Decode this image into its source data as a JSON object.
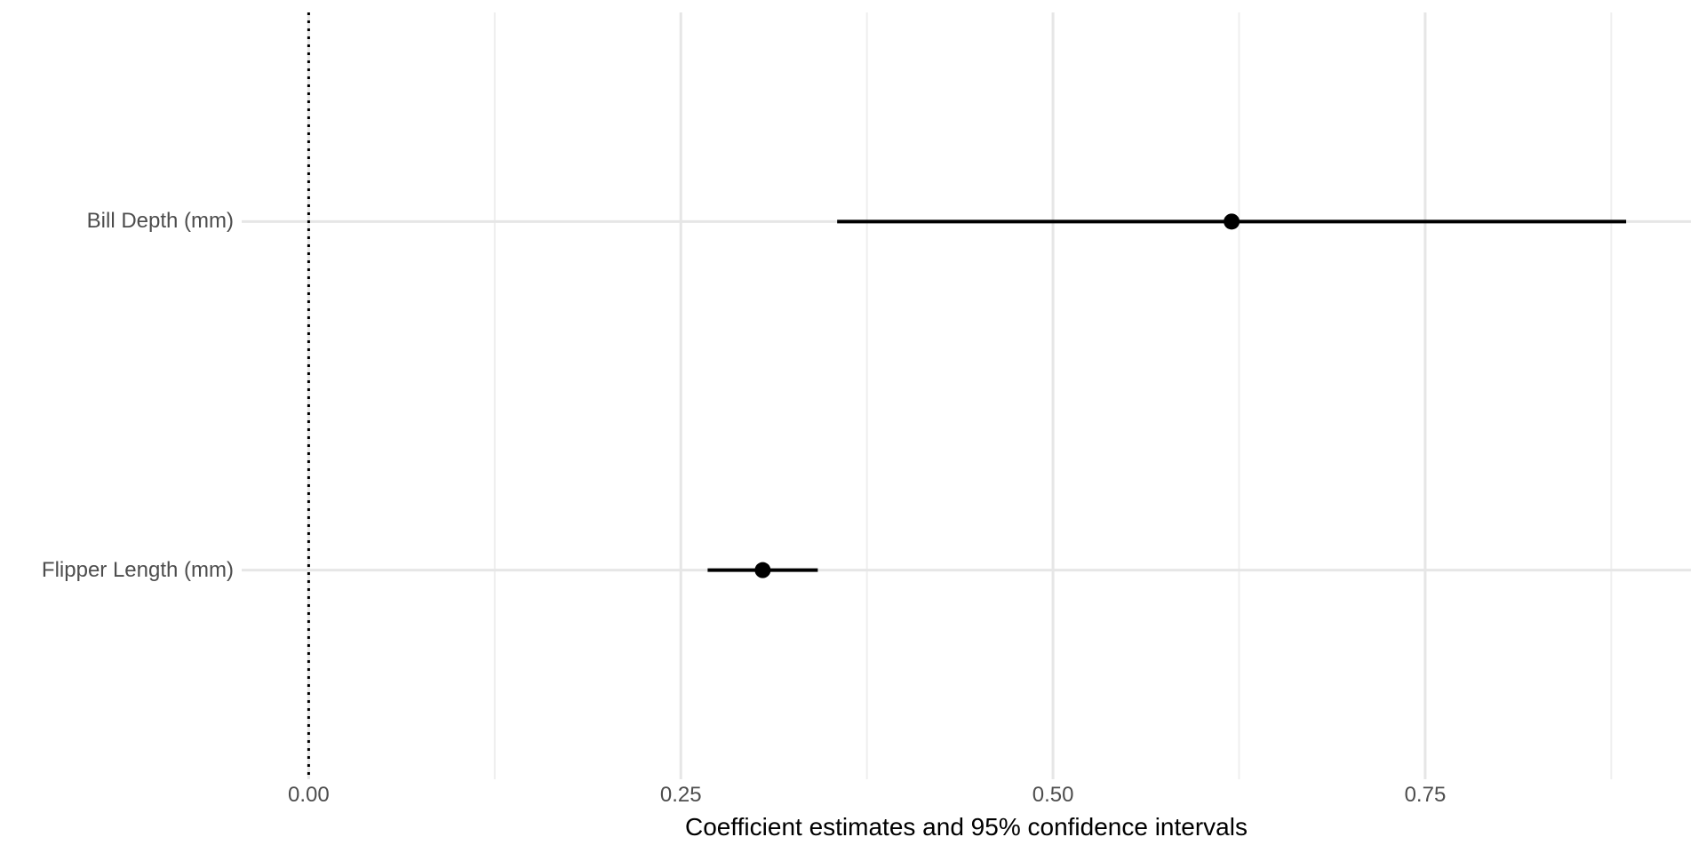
{
  "chart_data": {
    "type": "scatter",
    "subtype": "coefficient-dot-whisker",
    "title": "",
    "xlabel": "Coefficient estimates and 95% confidence intervals",
    "ylabel": "",
    "legend": "none",
    "grid": "on",
    "orientation": "horizontal",
    "xlim": [
      -0.045,
      0.9285
    ],
    "x_ticks": {
      "values": [
        0,
        0.25,
        0.5,
        0.75
      ],
      "labels": [
        "0.00",
        "0.25",
        "0.50",
        "0.75"
      ]
    },
    "x_minor_ticks": [
      0.125,
      0.375,
      0.625,
      0.875
    ],
    "zero_line": {
      "x": 0,
      "style": "dotted",
      "color": "#000000"
    },
    "rows": [
      {
        "label": "Bill Depth (mm)",
        "estimate": 0.62,
        "ci_low": 0.355,
        "ci_high": 0.885
      },
      {
        "label": "Flipper Length (mm)",
        "estimate": 0.305,
        "ci_low": 0.268,
        "ci_high": 0.342
      }
    ],
    "colors": {
      "background": "#FFFFFF",
      "point": "#000000",
      "ci_line": "#000000",
      "grid_major": "#E6E6E6",
      "grid_minor": "#EFEFEF",
      "tick_label": "#4D4D4D",
      "axis_title": "#000000"
    }
  }
}
